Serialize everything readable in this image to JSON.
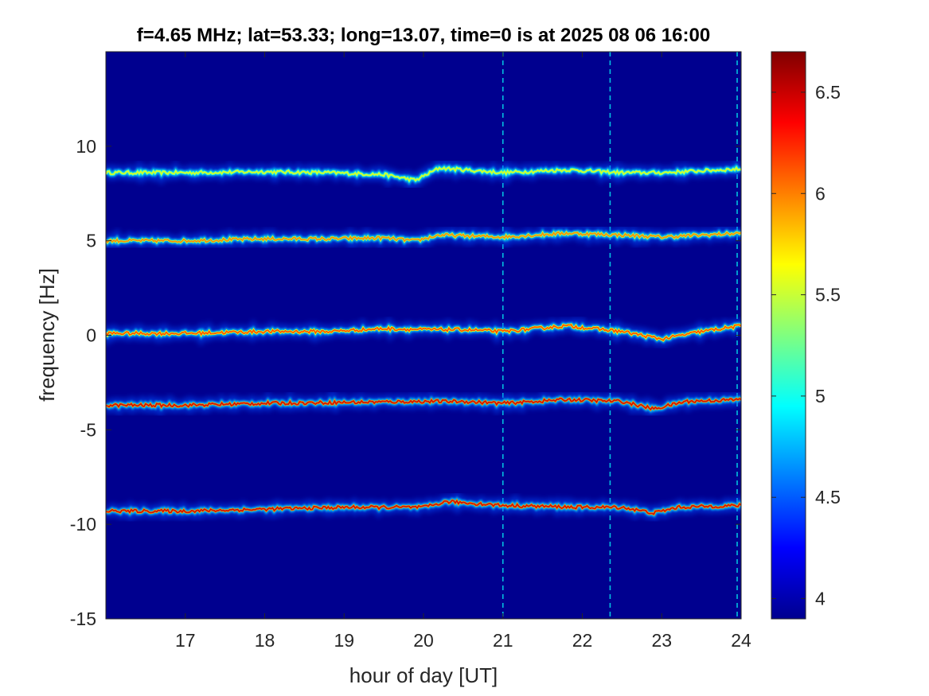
{
  "chart_data": {
    "type": "heatmap",
    "title": "f=4.65 MHz;  lat=53.33; long=13.07, time=0 is at 2025 08 06 16:00",
    "xlabel": "hour of day [UT]",
    "ylabel": "frequency [Hz]",
    "xlim": [
      16.0,
      24.0
    ],
    "ylim": [
      -15,
      15
    ],
    "x_ticks": [
      17,
      18,
      19,
      20,
      21,
      22,
      23,
      24
    ],
    "x_tick_labels": [
      "17",
      "18",
      "19",
      "20",
      "21",
      "22",
      "23",
      "24"
    ],
    "y_ticks": [
      -15,
      -10,
      -5,
      0,
      5,
      10
    ],
    "y_tick_labels": [
      "-15",
      "-10",
      "-5",
      "0",
      "5",
      "10"
    ],
    "colorbar": {
      "colormap": "jet",
      "clim": [
        3.9,
        6.7
      ],
      "ticks": [
        4,
        4.5,
        5,
        5.5,
        6,
        6.5
      ],
      "tick_labels": [
        "4",
        "4.5",
        "5",
        "5.5",
        "6",
        "6.5"
      ]
    },
    "background_color": "#00008f",
    "series": [
      {
        "x": [
          16.0,
          17.0,
          18.0,
          18.8,
          19.5,
          19.9,
          20.2,
          21.0,
          21.8,
          22.5,
          23.0,
          23.5,
          24.0
        ],
        "y": [
          8.6,
          8.6,
          8.65,
          8.6,
          8.5,
          8.2,
          8.85,
          8.6,
          8.75,
          8.6,
          8.6,
          8.7,
          8.8
        ],
        "intensity": 5.6
      },
      {
        "x": [
          16.0,
          17.0,
          18.0,
          18.8,
          19.5,
          19.9,
          20.2,
          21.0,
          21.8,
          22.5,
          23.0,
          23.5,
          24.0
        ],
        "y": [
          5.0,
          5.0,
          5.1,
          5.1,
          5.15,
          5.0,
          5.3,
          5.2,
          5.4,
          5.3,
          5.2,
          5.3,
          5.4
        ],
        "intensity": 6.0
      },
      {
        "x": [
          16.0,
          17.0,
          18.0,
          18.8,
          19.5,
          20.0,
          20.5,
          21.0,
          21.8,
          22.5,
          23.0,
          23.5,
          24.0
        ],
        "y": [
          0.1,
          0.1,
          0.2,
          0.2,
          0.35,
          0.3,
          0.3,
          0.2,
          0.5,
          0.2,
          -0.2,
          0.2,
          0.5
        ],
        "intensity": 6.2
      },
      {
        "x": [
          16.0,
          17.0,
          18.0,
          19.0,
          20.0,
          20.5,
          21.0,
          21.8,
          22.5,
          22.9,
          23.3,
          24.0
        ],
        "y": [
          -3.7,
          -3.7,
          -3.6,
          -3.55,
          -3.5,
          -3.5,
          -3.6,
          -3.4,
          -3.5,
          -3.9,
          -3.5,
          -3.4
        ],
        "intensity": 6.5
      },
      {
        "x": [
          16.0,
          17.0,
          18.0,
          19.0,
          20.0,
          20.3,
          21.0,
          22.0,
          22.5,
          22.9,
          23.2,
          24.0
        ],
        "y": [
          -9.3,
          -9.3,
          -9.2,
          -9.1,
          -9.1,
          -8.8,
          -9.0,
          -9.1,
          -9.1,
          -9.4,
          -9.1,
          -9.0
        ],
        "intensity": 6.5
      }
    ],
    "vertical_artifacts_hours": [
      21.0,
      22.35,
      23.95
    ]
  }
}
